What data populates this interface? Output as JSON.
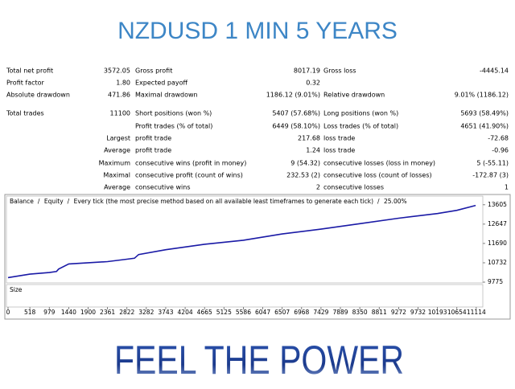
{
  "header": {
    "title": "NZDUSD 1 MIN 5 YEARS"
  },
  "stats": {
    "rows": [
      [
        "Total net profit",
        "3572.05",
        "Gross profit",
        "8017.19",
        "Gross loss",
        "-4445.14"
      ],
      [
        "Profit factor",
        "1.80",
        "Expected payoff",
        "0.32"
      ],
      [
        "Absolute drawdown",
        "471.86",
        "Maximal drawdown",
        "1186.12 (9.01%)",
        "Relative drawdown",
        "9.01% (1186.12)"
      ],
      [
        "Total trades",
        "11100",
        "Short positions (won %)",
        "5407 (57.68%)",
        "Long positions (won %)",
        "5693 (58.49%)"
      ],
      [
        null,
        null,
        "Profit trades (% of total)",
        "6449 (58.10%)",
        "Loss trades (% of total)",
        "4651 (41.90%)"
      ],
      [
        null,
        "Largest",
        "profit trade",
        "217.68",
        "loss trade",
        "-72.68"
      ],
      [
        null,
        "Average",
        "profit trade",
        "1.24",
        "loss trade",
        "-0.96"
      ],
      [
        null,
        "Maximum",
        "consecutive wins (profit in money)",
        "9 (54.32)",
        "consecutive losses (loss in money)",
        "5 (-55.11)"
      ],
      [
        null,
        "Maximal",
        "consecutive profit (count of wins)",
        "232.53 (2)",
        "consecutive loss (count of losses)",
        "-172.87 (3)"
      ],
      [
        null,
        "Average",
        "consecutive wins",
        "2",
        "consecutive losses",
        "1"
      ]
    ]
  },
  "chart_data": {
    "type": "line",
    "legend": [
      {
        "text": "Balance",
        "color": "#0000c0"
      },
      {
        "text": "Equity",
        "color": "#00a000"
      },
      {
        "text": "Every tick (the most precise method based on all available least timeframes to generate each tick)",
        "color": "#000000"
      },
      {
        "text": "25.00%",
        "color": "#000000"
      }
    ],
    "legend_separator": "/",
    "sub_panel_label": "Size",
    "x": [
      0,
      518,
      979,
      1150,
      1200,
      1440,
      2361,
      2822,
      3000,
      3100,
      3743,
      4665,
      5586,
      6507,
      7429,
      8350,
      9272,
      10193,
      10654,
      11100
    ],
    "series": [
      {
        "name": "Balance",
        "color": "#1a1aa6",
        "values": [
          10000,
          10170,
          10250,
          10300,
          10420,
          10674,
          10790,
          10910,
          10960,
          11140,
          11380,
          11650,
          11850,
          12160,
          12400,
          12670,
          12940,
          13170,
          13330,
          13572
        ]
      }
    ],
    "xlim": [
      0,
      11270
    ],
    "ylim": [
      9736,
      14035
    ],
    "xticks": [
      0,
      518,
      979,
      1440,
      1900,
      2361,
      2822,
      3282,
      3743,
      4204,
      4665,
      5125,
      5586,
      6047,
      6507,
      6968,
      7429,
      7889,
      8350,
      8811,
      9272,
      9732,
      10193,
      10654,
      11114
    ],
    "yticks": [
      9775,
      10732,
      11690,
      12647,
      13605
    ]
  },
  "footer": {
    "text": "FEEL THE POWER"
  }
}
